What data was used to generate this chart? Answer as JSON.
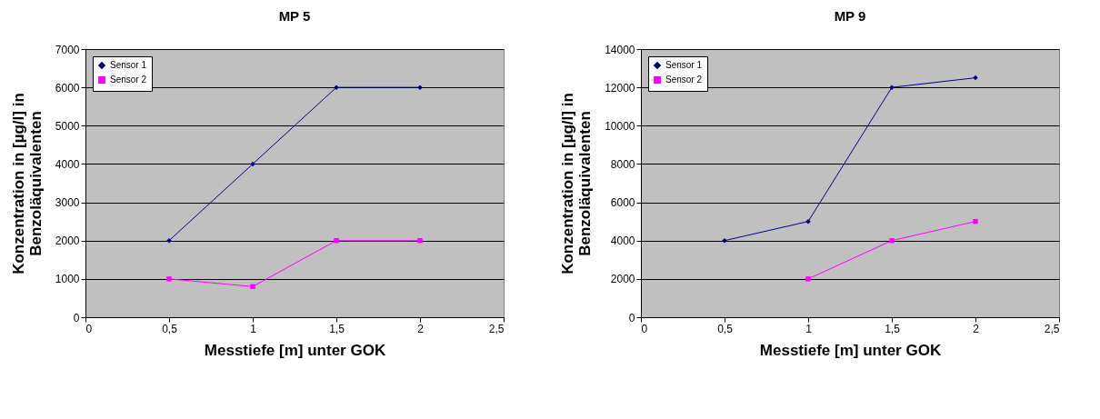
{
  "chart_data": [
    {
      "type": "line",
      "title": "MP 5",
      "xlabel": "Messtiefe [m] unter GOK",
      "ylabel": "Konzentration in [µg/l] in Benzoläquivalenten",
      "x": [
        0.5,
        1,
        1.5,
        2
      ],
      "xlim": [
        0,
        2.5
      ],
      "xticks": [
        0,
        {
          "value": 0.5,
          "label": "0,5"
        },
        1,
        {
          "value": 1.5,
          "label": "1,5"
        },
        2,
        {
          "value": 2.5,
          "label": "2,5"
        }
      ],
      "ylim": [
        0,
        7000
      ],
      "yticks": [
        0,
        1000,
        2000,
        3000,
        4000,
        5000,
        6000,
        7000
      ],
      "grid": "y",
      "legend": "top left",
      "series": [
        {
          "name": "Sensor 1",
          "color": "#000080",
          "marker": "diamond",
          "values": [
            2000,
            4000,
            6000,
            6000
          ]
        },
        {
          "name": "Sensor 2",
          "color": "#ff00ff",
          "marker": "square",
          "values": [
            1000,
            800,
            2000,
            2000
          ]
        }
      ]
    },
    {
      "type": "line",
      "title": "MP 9",
      "xlabel": "Messtiefe [m] unter GOK",
      "ylabel": "Konzentration in [µg/l] in Benzoläquivalenten",
      "x": [
        0.5,
        1,
        1.5,
        2
      ],
      "xlim": [
        0,
        2.5
      ],
      "xticks": [
        0,
        {
          "value": 0.5,
          "label": "0,5"
        },
        1,
        {
          "value": 1.5,
          "label": "1,5"
        },
        2,
        {
          "value": 2.5,
          "label": "2,5"
        }
      ],
      "ylim": [
        0,
        14000
      ],
      "yticks": [
        0,
        2000,
        4000,
        6000,
        8000,
        10000,
        12000,
        14000
      ],
      "grid": "y",
      "legend": "top left",
      "series": [
        {
          "name": "Sensor 1",
          "color": "#000080",
          "marker": "diamond",
          "values": [
            4000,
            5000,
            12000,
            12500
          ]
        },
        {
          "name": "Sensor 2",
          "color": "#ff00ff",
          "marker": "square",
          "values": [
            null,
            2000,
            4000,
            5000
          ]
        }
      ]
    }
  ]
}
